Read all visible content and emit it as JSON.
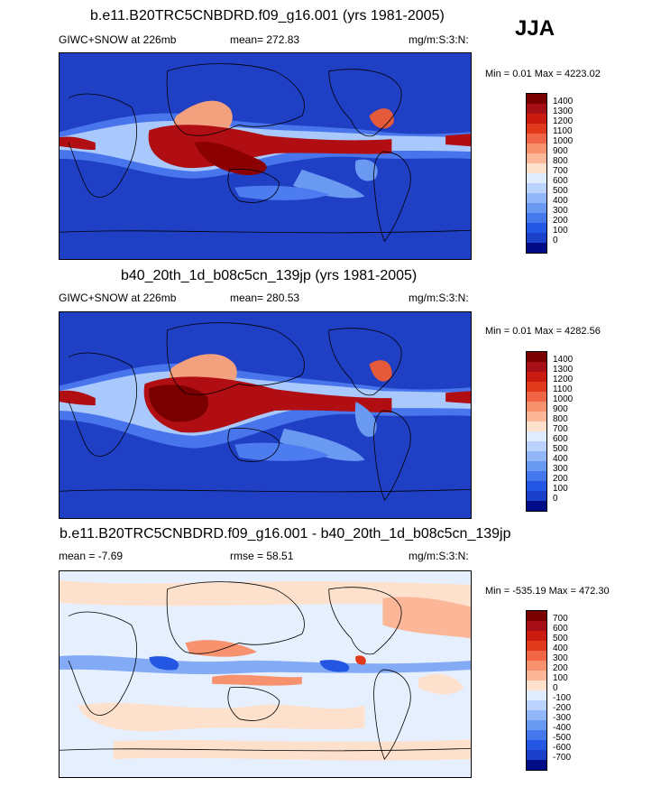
{
  "season": "JJA",
  "panels": [
    {
      "title": "b.e11.B20TRC5CNBDRD.f09_g16.001 (yrs 1981-2005)",
      "left_label": "GIWC+SNOW at 226mb",
      "stat_label": "mean= 272.83",
      "units": "mg/m:S:3:N:",
      "minmax": "Min =  0.01 Max = 4223.02",
      "colorbar": {
        "labels": [
          "1400",
          "1300",
          "1200",
          "1100",
          "1000",
          "900",
          "800",
          "700",
          "600",
          "500",
          "400",
          "300",
          "200",
          "100",
          "0"
        ],
        "colors": [
          "#7a0000",
          "#a50f15",
          "#cb1a0f",
          "#e0391c",
          "#f06545",
          "#f8916d",
          "#fcb799",
          "#fde1cd",
          "#e0ebfd",
          "#bad2fc",
          "#91b7f8",
          "#6a99f2",
          "#4478ec",
          "#2356e2",
          "#1a3fc8",
          "#000b86"
        ]
      }
    },
    {
      "title": "b40_20th_1d_b08c5cn_139jp (yrs 1981-2005)",
      "left_label": "GIWC+SNOW at 226mb",
      "stat_label": "mean= 280.53",
      "units": "mg/m:S:3:N:",
      "minmax": "Min =  0.01 Max = 4282.56",
      "colorbar": {
        "labels": [
          "1400",
          "1300",
          "1200",
          "1100",
          "1000",
          "900",
          "800",
          "700",
          "600",
          "500",
          "400",
          "300",
          "200",
          "100",
          "0"
        ],
        "colors": [
          "#7a0000",
          "#a50f15",
          "#cb1a0f",
          "#e0391c",
          "#f06545",
          "#f8916d",
          "#fcb799",
          "#fde1cd",
          "#e0ebfd",
          "#bad2fc",
          "#91b7f8",
          "#6a99f2",
          "#4478ec",
          "#2356e2",
          "#1a3fc8",
          "#000b86"
        ]
      }
    },
    {
      "title": "b.e11.B20TRC5CNBDRD.f09_g16.001 - b40_20th_1d_b08c5cn_139jp",
      "left_label": "mean =  -7.69",
      "stat_label": "rmse =  58.51",
      "units": "mg/m:S:3:N:",
      "minmax": "Min = -535.19 Max = 472.30",
      "colorbar": {
        "labels": [
          "700",
          "600",
          "500",
          "400",
          "300",
          "200",
          "100",
          "0",
          "-100",
          "-200",
          "-300",
          "-400",
          "-500",
          "-600",
          "-700"
        ],
        "colors": [
          "#7a0000",
          "#a50f15",
          "#cb1a0f",
          "#e0391c",
          "#f06545",
          "#f8916d",
          "#fcb799",
          "#fde1cd",
          "#e0ebfd",
          "#bad2fc",
          "#91b7f8",
          "#6a99f2",
          "#4478ec",
          "#2356e2",
          "#1a3fc8",
          "#000b86"
        ]
      }
    }
  ],
  "map_colors": {
    "ocean_base": "#1f3fc4",
    "diff_base": "#e6effd"
  }
}
